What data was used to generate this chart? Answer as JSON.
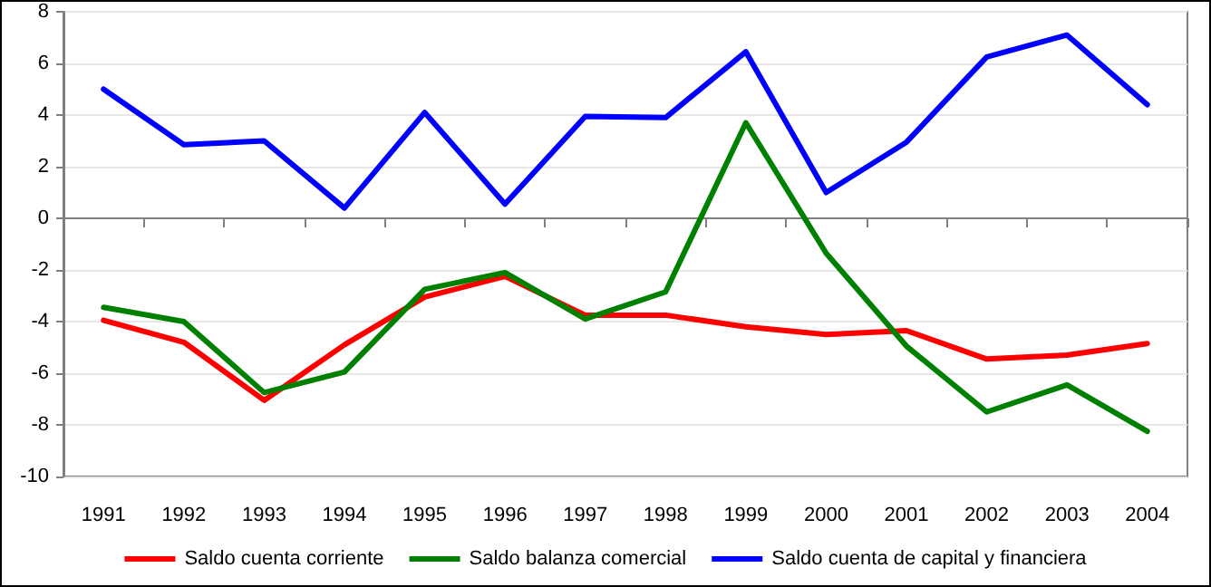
{
  "chart_data": {
    "type": "line",
    "categories": [
      "1991",
      "1992",
      "1993",
      "1994",
      "1995",
      "1996",
      "1997",
      "1998",
      "1999",
      "2000",
      "2001",
      "2002",
      "2003",
      "2004"
    ],
    "series": [
      {
        "name": "Saldo cuenta corriente",
        "color": "#ff0000",
        "values": [
          -3.95,
          -4.8,
          -7.05,
          -4.9,
          -3.05,
          -2.25,
          -3.75,
          -3.75,
          -4.2,
          -4.5,
          -4.35,
          -5.45,
          -5.3,
          -4.85
        ]
      },
      {
        "name": "Saldo balanza comercial",
        "color": "#008000",
        "values": [
          -3.45,
          -4.0,
          -6.75,
          -5.95,
          -2.75,
          -2.1,
          -3.9,
          -2.85,
          3.7,
          -1.35,
          -4.95,
          -7.5,
          -6.45,
          -8.25
        ]
      },
      {
        "name": "Saldo cuenta de capital y financiera",
        "color": "#0000ff",
        "values": [
          5.0,
          2.85,
          3.0,
          0.4,
          4.1,
          0.55,
          3.95,
          3.9,
          6.45,
          1.0,
          2.95,
          6.25,
          7.1,
          4.4
        ]
      }
    ],
    "ylim": [
      -10,
      8
    ],
    "yticks": [
      -10,
      -8,
      -6,
      -4,
      -2,
      0,
      2,
      4,
      6,
      8
    ],
    "grid": "y",
    "legend": "bottom",
    "marker": "none",
    "line_style": "solid"
  }
}
